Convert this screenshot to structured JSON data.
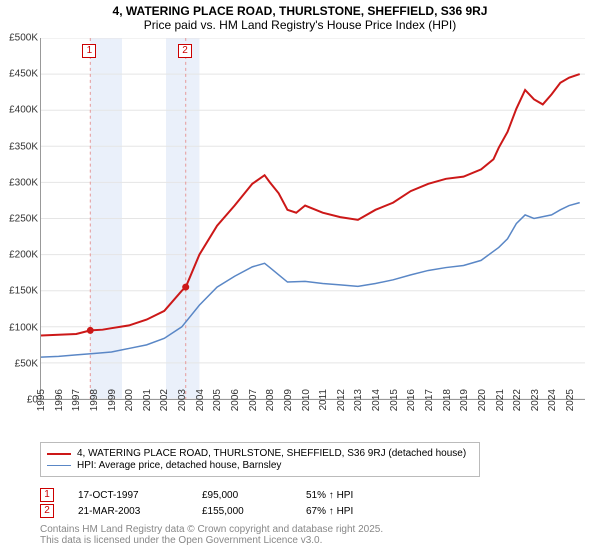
{
  "titles": {
    "line1": "4, WATERING PLACE ROAD, THURLSTONE, SHEFFIELD, S36 9RJ",
    "line2": "Price paid vs. HM Land Registry's House Price Index (HPI)",
    "fontsize": 12
  },
  "chart": {
    "type": "line",
    "background_color": "#ffffff",
    "grid_color": "#e5e5e5",
    "axis_color": "#999999",
    "y": {
      "min": 0,
      "max": 500000,
      "step": 50000,
      "prefix": "£",
      "tick_labels": [
        "£0",
        "£50K",
        "£100K",
        "£150K",
        "£200K",
        "£250K",
        "£300K",
        "£350K",
        "£400K",
        "£450K",
        "£500K"
      ]
    },
    "x": {
      "min": 1995,
      "max": 2025.9,
      "ticks": [
        1995,
        1996,
        1997,
        1998,
        1999,
        2000,
        2001,
        2002,
        2003,
        2004,
        2005,
        2006,
        2007,
        2008,
        2009,
        2010,
        2011,
        2012,
        2013,
        2014,
        2015,
        2016,
        2017,
        2018,
        2019,
        2020,
        2021,
        2022,
        2023,
        2024,
        2025
      ]
    },
    "highlight_bands": [
      {
        "from": 1997.8,
        "to": 1999.6,
        "color": "#eaf0fa"
      },
      {
        "from": 2002.1,
        "to": 2004.0,
        "color": "#eaf0fa"
      }
    ],
    "event_markers": [
      {
        "x": 1997.8,
        "y": 95000,
        "label": "1",
        "date": "17-OCT-1997",
        "price": "£95,000",
        "delta": "51% ↑ HPI",
        "dash_color": "#e69999"
      },
      {
        "x": 2003.22,
        "y": 155000,
        "label": "2",
        "date": "21-MAR-2003",
        "price": "£155,000",
        "delta": "67% ↑ HPI",
        "dash_color": "#e69999"
      }
    ],
    "series": [
      {
        "name": "4, WATERING PLACE ROAD, THURLSTONE, SHEFFIELD, S36 9RJ (detached house)",
        "color": "#cc1818",
        "width": 2,
        "points": [
          [
            1995,
            88000
          ],
          [
            1996,
            89000
          ],
          [
            1997,
            90000
          ],
          [
            1997.8,
            95000
          ],
          [
            1998.5,
            96000
          ],
          [
            1999,
            98000
          ],
          [
            2000,
            102000
          ],
          [
            2001,
            110000
          ],
          [
            2002,
            122000
          ],
          [
            2003,
            150000
          ],
          [
            2003.22,
            155000
          ],
          [
            2004,
            200000
          ],
          [
            2005,
            240000
          ],
          [
            2006,
            268000
          ],
          [
            2007,
            298000
          ],
          [
            2007.7,
            310000
          ],
          [
            2008,
            300000
          ],
          [
            2008.5,
            285000
          ],
          [
            2009,
            262000
          ],
          [
            2009.5,
            258000
          ],
          [
            2010,
            268000
          ],
          [
            2011,
            258000
          ],
          [
            2012,
            252000
          ],
          [
            2013,
            248000
          ],
          [
            2014,
            262000
          ],
          [
            2015,
            272000
          ],
          [
            2016,
            288000
          ],
          [
            2017,
            298000
          ],
          [
            2018,
            305000
          ],
          [
            2019,
            308000
          ],
          [
            2020,
            318000
          ],
          [
            2020.7,
            332000
          ],
          [
            2021,
            348000
          ],
          [
            2021.5,
            370000
          ],
          [
            2022,
            402000
          ],
          [
            2022.5,
            428000
          ],
          [
            2023,
            415000
          ],
          [
            2023.5,
            408000
          ],
          [
            2024,
            422000
          ],
          [
            2024.5,
            438000
          ],
          [
            2025,
            445000
          ],
          [
            2025.6,
            450000
          ]
        ]
      },
      {
        "name": "HPI: Average price, detached house, Barnsley",
        "color": "#5a87c6",
        "width": 1.5,
        "points": [
          [
            1995,
            58000
          ],
          [
            1996,
            59000
          ],
          [
            1997,
            61000
          ],
          [
            1998,
            63000
          ],
          [
            1999,
            65000
          ],
          [
            2000,
            70000
          ],
          [
            2001,
            75000
          ],
          [
            2002,
            84000
          ],
          [
            2003,
            100000
          ],
          [
            2004,
            130000
          ],
          [
            2005,
            155000
          ],
          [
            2006,
            170000
          ],
          [
            2007,
            183000
          ],
          [
            2007.7,
            188000
          ],
          [
            2008,
            182000
          ],
          [
            2008.5,
            172000
          ],
          [
            2009,
            162000
          ],
          [
            2010,
            163000
          ],
          [
            2011,
            160000
          ],
          [
            2012,
            158000
          ],
          [
            2013,
            156000
          ],
          [
            2014,
            160000
          ],
          [
            2015,
            165000
          ],
          [
            2016,
            172000
          ],
          [
            2017,
            178000
          ],
          [
            2018,
            182000
          ],
          [
            2019,
            185000
          ],
          [
            2020,
            192000
          ],
          [
            2021,
            210000
          ],
          [
            2021.5,
            222000
          ],
          [
            2022,
            243000
          ],
          [
            2022.5,
            255000
          ],
          [
            2023,
            250000
          ],
          [
            2024,
            255000
          ],
          [
            2024.5,
            262000
          ],
          [
            2025,
            268000
          ],
          [
            2025.6,
            272000
          ]
        ]
      }
    ]
  },
  "legend": {
    "items": [
      {
        "color": "#cc1818",
        "label": "4, WATERING PLACE ROAD, THURLSTONE, SHEFFIELD, S36 9RJ (detached house)"
      },
      {
        "color": "#5a87c6",
        "label": "HPI: Average price, detached house, Barnsley"
      }
    ]
  },
  "footer": {
    "line1": "Contains HM Land Registry data © Crown copyright and database right 2025.",
    "line2": "This data is licensed under the Open Government Licence v3.0."
  }
}
